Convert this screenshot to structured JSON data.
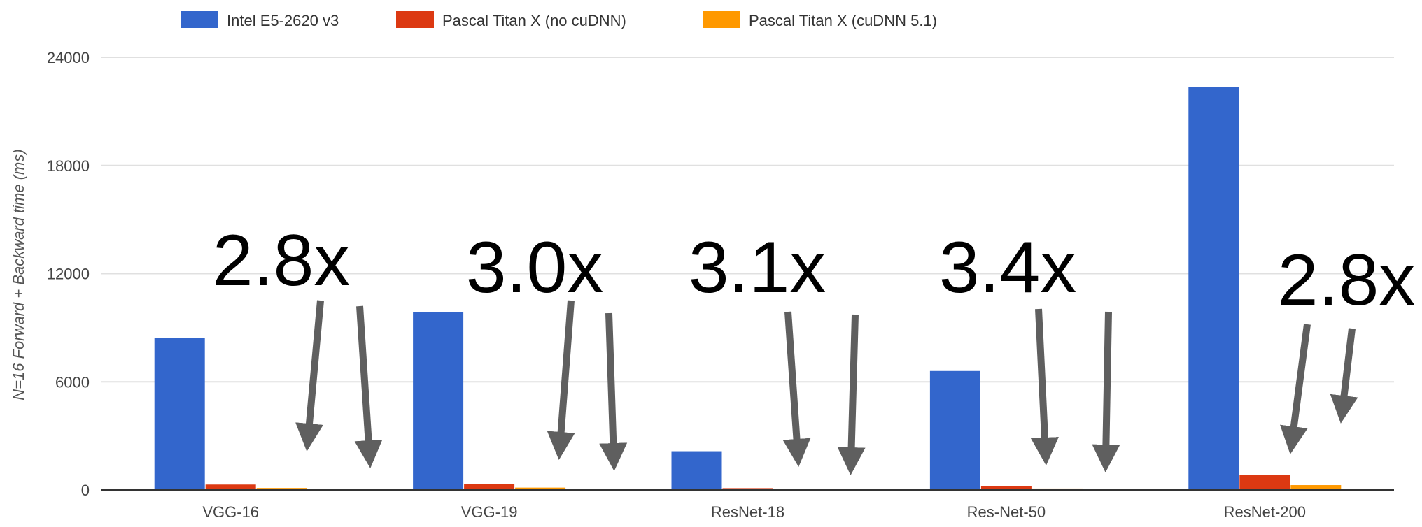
{
  "chart_data": {
    "type": "bar",
    "title": "",
    "xlabel": "",
    "ylabel": "N=16 Forward + Backward time (ms)",
    "ylim": [
      0,
      24000
    ],
    "yticks": [
      0,
      6000,
      12000,
      18000,
      24000
    ],
    "grid": true,
    "legend_position": "top-left",
    "categories": [
      "VGG-16",
      "VGG-19",
      "ResNet-18",
      "Res-Net-50",
      "ResNet-200"
    ],
    "series": [
      {
        "name": "Intel E5-2620 v3",
        "color": "#3366cc",
        "values": [
          8450,
          9850,
          2150,
          6600,
          22350
        ]
      },
      {
        "name": "Pascal Titan X (no cuDNN)",
        "color": "#dc3912",
        "values": [
          300,
          340,
          100,
          200,
          820
        ]
      },
      {
        "name": "Pascal Titan X (cuDNN 5.1)",
        "color": "#ff9900",
        "values": [
          110,
          130,
          50,
          80,
          270
        ]
      }
    ],
    "annotations": [
      "2.8x",
      "3.0x",
      "3.1x",
      "3.4x",
      "2.8x"
    ]
  }
}
